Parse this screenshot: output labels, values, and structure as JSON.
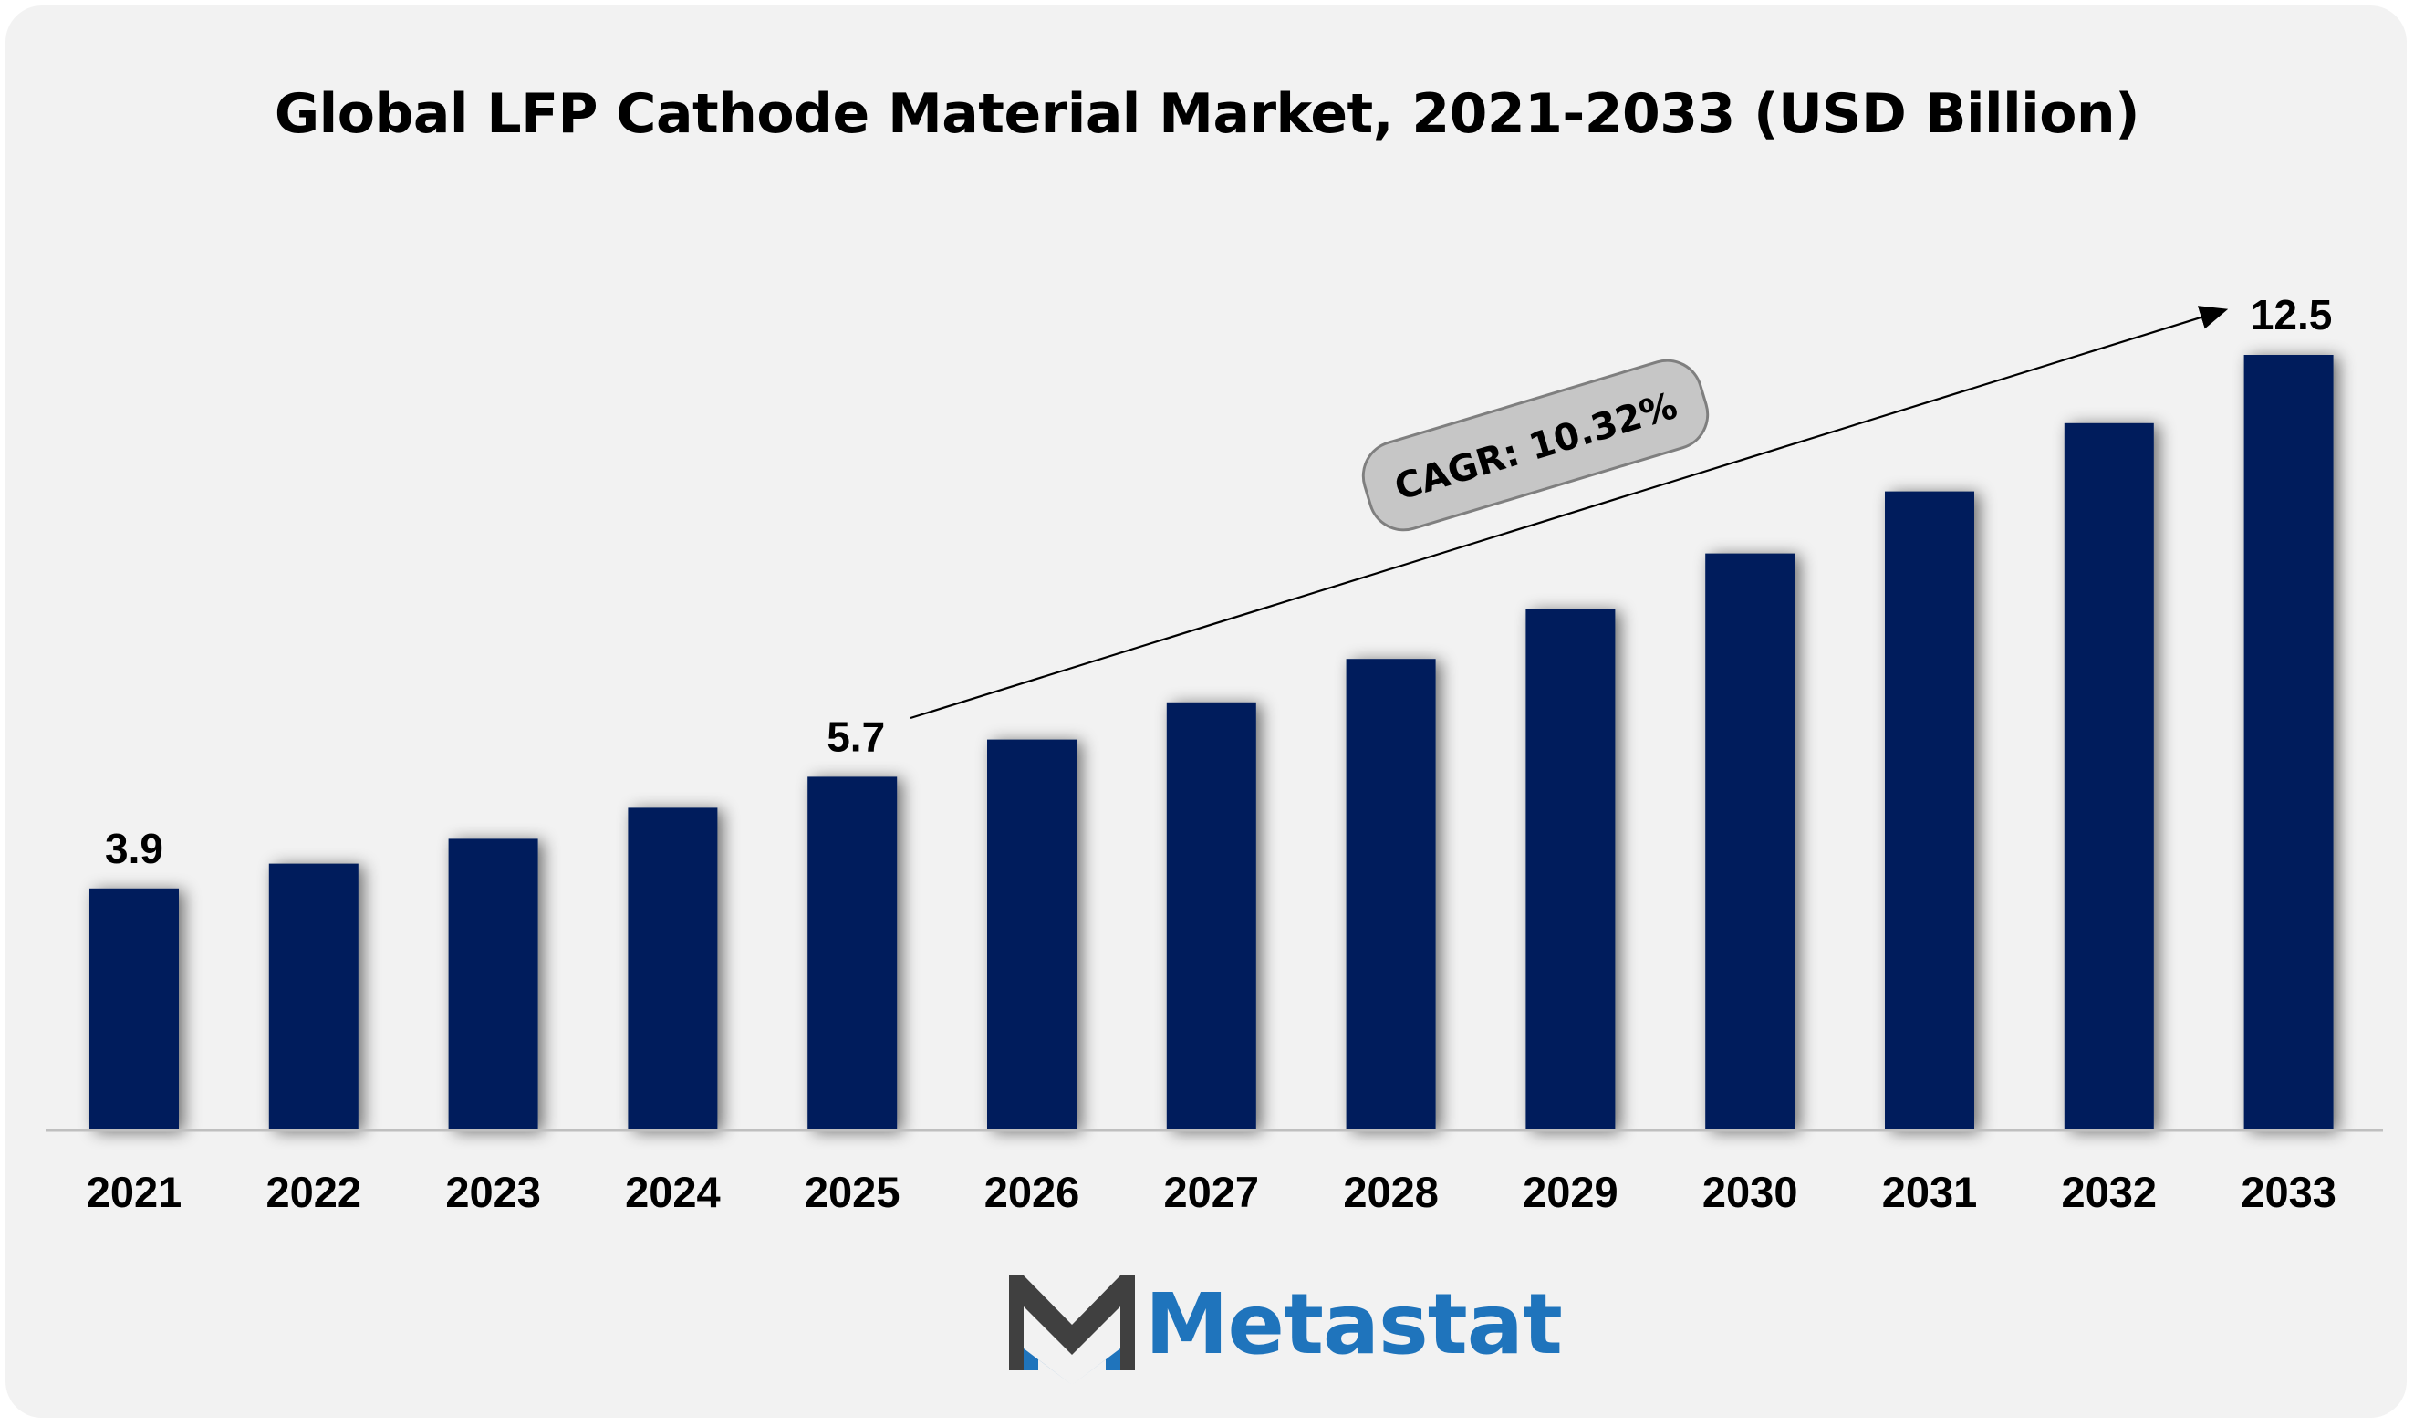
{
  "chart_data": {
    "type": "bar",
    "title": "Global LFP Cathode Material Market, 2021-2033 (USD Billion)",
    "categories": [
      "2021",
      "2022",
      "2023",
      "2024",
      "2025",
      "2026",
      "2027",
      "2028",
      "2029",
      "2030",
      "2031",
      "2032",
      "2033"
    ],
    "values": [
      3.9,
      4.3,
      4.7,
      5.2,
      5.7,
      6.3,
      6.9,
      7.6,
      8.4,
      9.3,
      10.3,
      11.4,
      12.5
    ],
    "data_labels": [
      {
        "category": "2021",
        "text": "3.9"
      },
      {
        "category": "2025",
        "text": "5.7"
      },
      {
        "category": "2033",
        "text": "12.5"
      }
    ],
    "annotation": {
      "text": "CAGR: 10.32%",
      "from": "2025",
      "to": "2033"
    },
    "xlabel": "",
    "ylabel": "",
    "ylim": [
      0,
      14
    ],
    "grid": false,
    "legend": "none",
    "bar_color": "#031f5b"
  },
  "brand": {
    "name": "Metastat",
    "text_color": "#1f74bc",
    "mark_dark": "#404040",
    "mark_blue": "#1f74bc"
  },
  "colors": {
    "background": "#f2f2f2",
    "axis": "#bfbfbf",
    "callout_fill": "#c6c6c6",
    "callout_stroke": "#7f7f7f"
  }
}
